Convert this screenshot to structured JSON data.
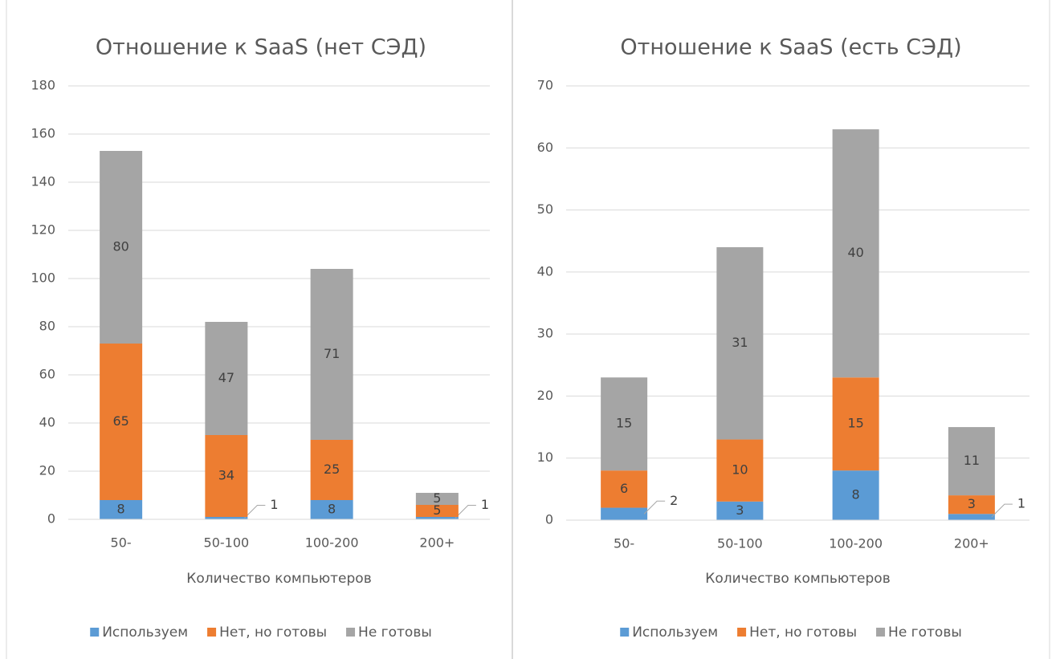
{
  "chart_data": [
    {
      "type": "bar",
      "stacked": true,
      "title": "Отношение к SaaS (нет СЭД)",
      "x_label": "Количество компьютеров",
      "categories": [
        "50-",
        "50-100",
        "100-200",
        "200+"
      ],
      "series": [
        {
          "name": "Используем",
          "color": "#5b9bd5",
          "values": [
            8,
            1,
            8,
            1
          ]
        },
        {
          "name": "Нет, но готовы",
          "color": "#ed7d31",
          "values": [
            65,
            34,
            25,
            5
          ]
        },
        {
          "name": "Не готовы",
          "color": "#a5a5a5",
          "values": [
            80,
            47,
            71,
            5
          ]
        }
      ],
      "ylim": [
        0,
        180
      ],
      "yticks": [
        0,
        20,
        40,
        60,
        80,
        100,
        120,
        140,
        160,
        180
      ],
      "grid": true,
      "legend": "bottom"
    },
    {
      "type": "bar",
      "stacked": true,
      "title": "Отношение к SaaS (есть СЭД)",
      "x_label": "Количество компьютеров",
      "categories": [
        "50-",
        "50-100",
        "100-200",
        "200+"
      ],
      "series": [
        {
          "name": "Используем",
          "color": "#5b9bd5",
          "values": [
            2,
            3,
            8,
            1
          ]
        },
        {
          "name": "Нет, но готовы",
          "color": "#ed7d31",
          "values": [
            6,
            10,
            15,
            3
          ]
        },
        {
          "name": "Не готовы",
          "color": "#a5a5a5",
          "values": [
            15,
            31,
            40,
            11
          ]
        }
      ],
      "ylim": [
        0,
        70
      ],
      "yticks": [
        0,
        10,
        20,
        30,
        40,
        50,
        60,
        70
      ],
      "grid": true,
      "legend": "bottom"
    }
  ]
}
